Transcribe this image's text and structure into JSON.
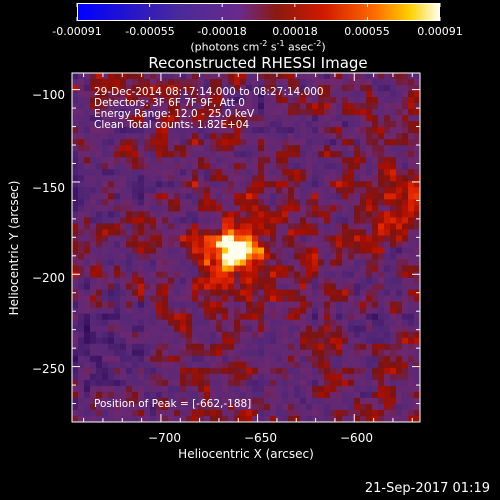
{
  "colorbar": {
    "ticks": [
      "-0.00091",
      "-0.00055",
      "-0.00018",
      "0.00018",
      "0.00055",
      "0.00091"
    ],
    "units_main": "(photons cm",
    "units_exp1": "-2",
    "units_mid1": " s",
    "units_exp2": "-1",
    "units_mid2": " asec",
    "units_exp3": "-2",
    "units_end": ")"
  },
  "chart_data": {
    "type": "heatmap",
    "title": "Reconstructed RHESSI Image",
    "xlabel": "Heliocentric X (arcsec)",
    "ylabel": "Heliocentric Y (arcsec)",
    "xlim": [
      -746,
      -566
    ],
    "ylim": [
      -280,
      -91
    ],
    "xticks": [
      -700,
      -650,
      -600
    ],
    "yticks": [
      -100,
      -150,
      -200,
      -250
    ],
    "xtick_labels": [
      "−700",
      "−650",
      "−600"
    ],
    "ytick_labels": [
      "−100",
      "−150",
      "−200",
      "−250"
    ],
    "colorbar_range": [
      -0.00091,
      0.00091
    ],
    "peak": [
      -662,
      -188
    ],
    "annotations": [
      "29-Dec-2014 08:17:14.000 to 08:27:14.000",
      "Detectors: 3F 6F 7F 9F, Att 0",
      "Energy Range: 12.0 - 25.0 keV",
      "Clean     Total counts: 1.82E+04"
    ],
    "peak_label": "Position of Peak = [-662,-188]",
    "colors": {
      "low": "#0000ff",
      "mid_low": "#6a2a8a",
      "mid_high": "#d01a00",
      "high": "#ffffee"
    }
  },
  "footer": {
    "timestamp": "21-Sep-2017 01:19"
  }
}
